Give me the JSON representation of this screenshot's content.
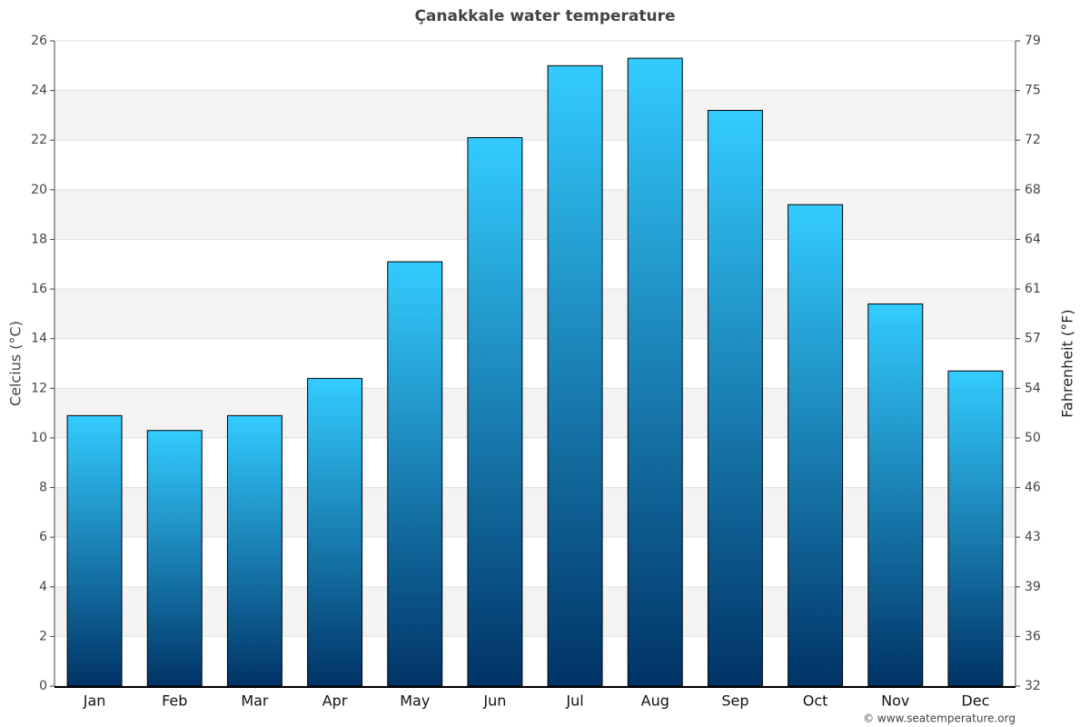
{
  "chart_data": {
    "type": "bar",
    "title": "Çanakkale water temperature",
    "y_label": "Celcius (°C)",
    "y2_label": "Fahrenheit (°F)",
    "source": "© www.seatemperature.org",
    "categories": [
      "Jan",
      "Feb",
      "Mar",
      "Apr",
      "May",
      "Jun",
      "Jul",
      "Aug",
      "Sep",
      "Oct",
      "Nov",
      "Dec"
    ],
    "values": [
      10.9,
      10.3,
      10.9,
      12.4,
      17.1,
      22.1,
      25.0,
      25.3,
      23.2,
      19.4,
      15.4,
      12.7
    ],
    "gradient": [
      "#33ccff",
      "#003366"
    ],
    "ylim": [
      0,
      26
    ],
    "yticks": [
      0,
      2,
      4,
      6,
      8,
      10,
      12,
      14,
      16,
      18,
      20,
      22,
      24,
      26
    ],
    "y2lim": [
      32,
      78.8
    ],
    "y2ticks": [
      32,
      {
        "value": 35.6,
        "label": "36"
      },
      {
        "value": 39.2,
        "label": "39"
      },
      {
        "value": 42.8,
        "label": "43"
      },
      {
        "value": 46.4,
        "label": "46"
      },
      50,
      {
        "value": 53.6,
        "label": "54"
      },
      {
        "value": 57.2,
        "label": "57"
      },
      {
        "value": 60.8,
        "label": "61"
      },
      {
        "value": 64.4,
        "label": "64"
      },
      68,
      {
        "value": 71.6,
        "label": "72"
      },
      {
        "value": 75.2,
        "label": "75"
      },
      {
        "value": 78.8,
        "label": "79"
      }
    ],
    "grid": true
  }
}
